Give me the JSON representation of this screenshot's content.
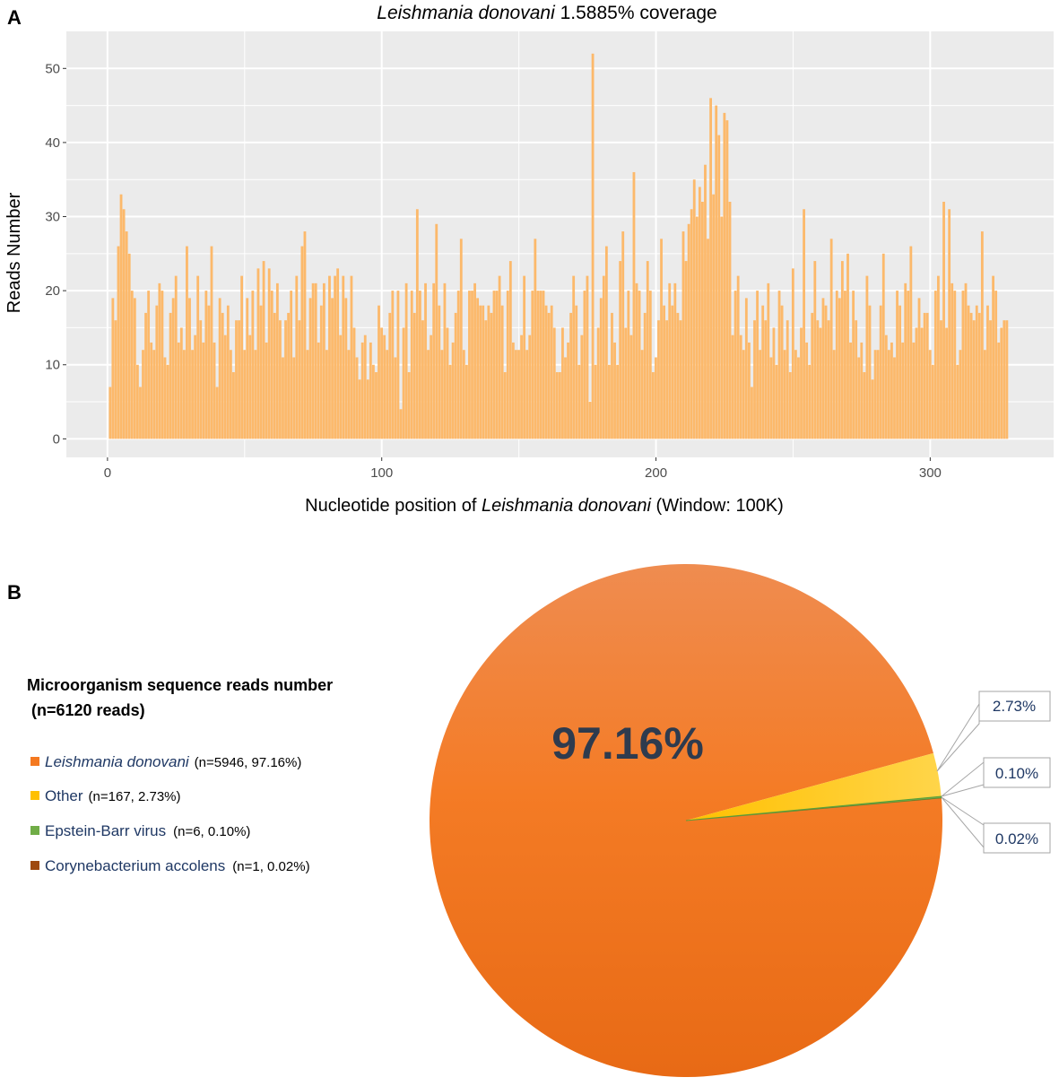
{
  "panel_a": {
    "letter": "A"
  },
  "panel_b": {
    "letter": "B"
  },
  "chart_data": [
    {
      "type": "bar",
      "title_italic": "Leishmania donovani",
      "title_rest": " 1.5885% coverage",
      "xlabel_prefix": "Nucleotide position of ",
      "xlabel_italic": "Leishmania donovani",
      "xlabel_suffix": " (Window: 100K)",
      "ylabel": "Reads Number",
      "xlim": [
        -15,
        345
      ],
      "ylim": [
        -2.5,
        55
      ],
      "xticks": [
        0,
        100,
        200,
        300
      ],
      "xtick_labels": [
        "0",
        "100",
        "200",
        "300"
      ],
      "yticks": [
        0,
        10,
        20,
        30,
        40,
        50
      ],
      "ytick_labels": [
        "0",
        "10",
        "20",
        "30",
        "40",
        "50"
      ],
      "grid": true,
      "bar_color": "#fcb96b",
      "values": [
        7,
        19,
        16,
        26,
        33,
        31,
        28,
        25,
        20,
        19,
        10,
        7,
        12,
        17,
        20,
        13,
        12,
        18,
        21,
        20,
        11,
        10,
        17,
        19,
        22,
        13,
        15,
        12,
        26,
        19,
        12,
        14,
        22,
        16,
        13,
        20,
        18,
        26,
        13,
        7,
        19,
        17,
        14,
        18,
        12,
        9,
        16,
        16,
        22,
        12,
        19,
        14,
        20,
        12,
        23,
        18,
        24,
        13,
        23,
        20,
        17,
        21,
        16,
        11,
        16,
        17,
        20,
        11,
        22,
        16,
        26,
        28,
        12,
        19,
        21,
        21,
        13,
        18,
        21,
        12,
        22,
        19,
        22,
        23,
        14,
        22,
        19,
        12,
        22,
        15,
        11,
        8,
        13,
        14,
        8,
        13,
        10,
        9,
        18,
        15,
        14,
        12,
        17,
        20,
        11,
        20,
        4,
        15,
        21,
        9,
        20,
        17,
        31,
        20,
        16,
        21,
        12,
        14,
        21,
        29,
        18,
        12,
        21,
        15,
        10,
        13,
        17,
        20,
        27,
        12,
        10,
        20,
        20,
        21,
        19,
        18,
        18,
        16,
        18,
        17,
        20,
        20,
        22,
        18,
        9,
        20,
        24,
        13,
        12,
        12,
        14,
        22,
        12,
        14,
        20,
        27,
        20,
        20,
        20,
        18,
        17,
        18,
        15,
        9,
        9,
        15,
        11,
        13,
        17,
        22,
        18,
        10,
        14,
        20,
        22,
        5,
        52,
        10,
        15,
        19,
        22,
        26,
        10,
        17,
        13,
        10,
        24,
        28,
        15,
        20,
        14,
        36,
        21,
        20,
        12,
        17,
        24,
        20,
        9,
        11,
        16,
        27,
        18,
        16,
        21,
        18,
        21,
        17,
        16,
        28,
        24,
        29,
        31,
        35,
        30,
        34,
        32,
        37,
        27,
        46,
        33,
        45,
        41,
        30,
        44,
        43,
        32,
        14,
        20,
        22,
        14,
        12,
        19,
        13,
        7,
        16,
        20,
        12,
        18,
        16,
        21,
        11,
        15,
        10,
        20,
        18,
        12,
        16,
        9,
        23,
        12,
        11,
        15,
        31,
        13,
        10,
        17,
        24,
        16,
        15,
        19,
        18,
        16,
        27,
        12,
        20,
        19,
        24,
        20,
        25,
        13,
        20,
        16,
        11,
        13,
        9,
        22,
        18,
        8,
        12,
        12,
        18,
        25,
        14,
        12,
        13,
        11,
        20,
        18,
        13,
        21,
        20,
        26,
        13,
        15,
        19,
        15,
        17,
        17,
        12,
        10,
        20,
        22,
        16,
        32,
        15,
        31,
        21,
        20,
        10,
        12,
        20,
        21,
        18,
        17,
        16,
        18,
        17,
        28,
        12,
        18,
        16,
        22,
        20,
        13,
        15,
        16,
        16
      ],
      "bar_count_note": "approximate per-window read counts"
    },
    {
      "type": "pie",
      "legend_title_line1": "Microorganism sequence reads number",
      "legend_title_line2": " (n=6120 reads)",
      "slices": [
        {
          "name": "Leishmania donovani",
          "italic": true,
          "stat": "(n=5946, 97.16%)",
          "value": 97.16,
          "color": "#f47920",
          "label": "97.16%"
        },
        {
          "name": "Other",
          "italic": false,
          "stat": "(n=167, 2.73%)",
          "value": 2.73,
          "color": "#ffc000",
          "label": "2.73%"
        },
        {
          "name": "Epstein-Barr virus",
          "italic": false,
          "stat": "(n=6, 0.10%)",
          "value": 0.1,
          "color": "#70ad47",
          "label": "0.10%"
        },
        {
          "name": "Corynebacterium accolens",
          "italic": false,
          "stat": "(n=1, 0.02%)",
          "value": 0.02,
          "color": "#9e480e",
          "label": "0.02%"
        }
      ]
    }
  ]
}
